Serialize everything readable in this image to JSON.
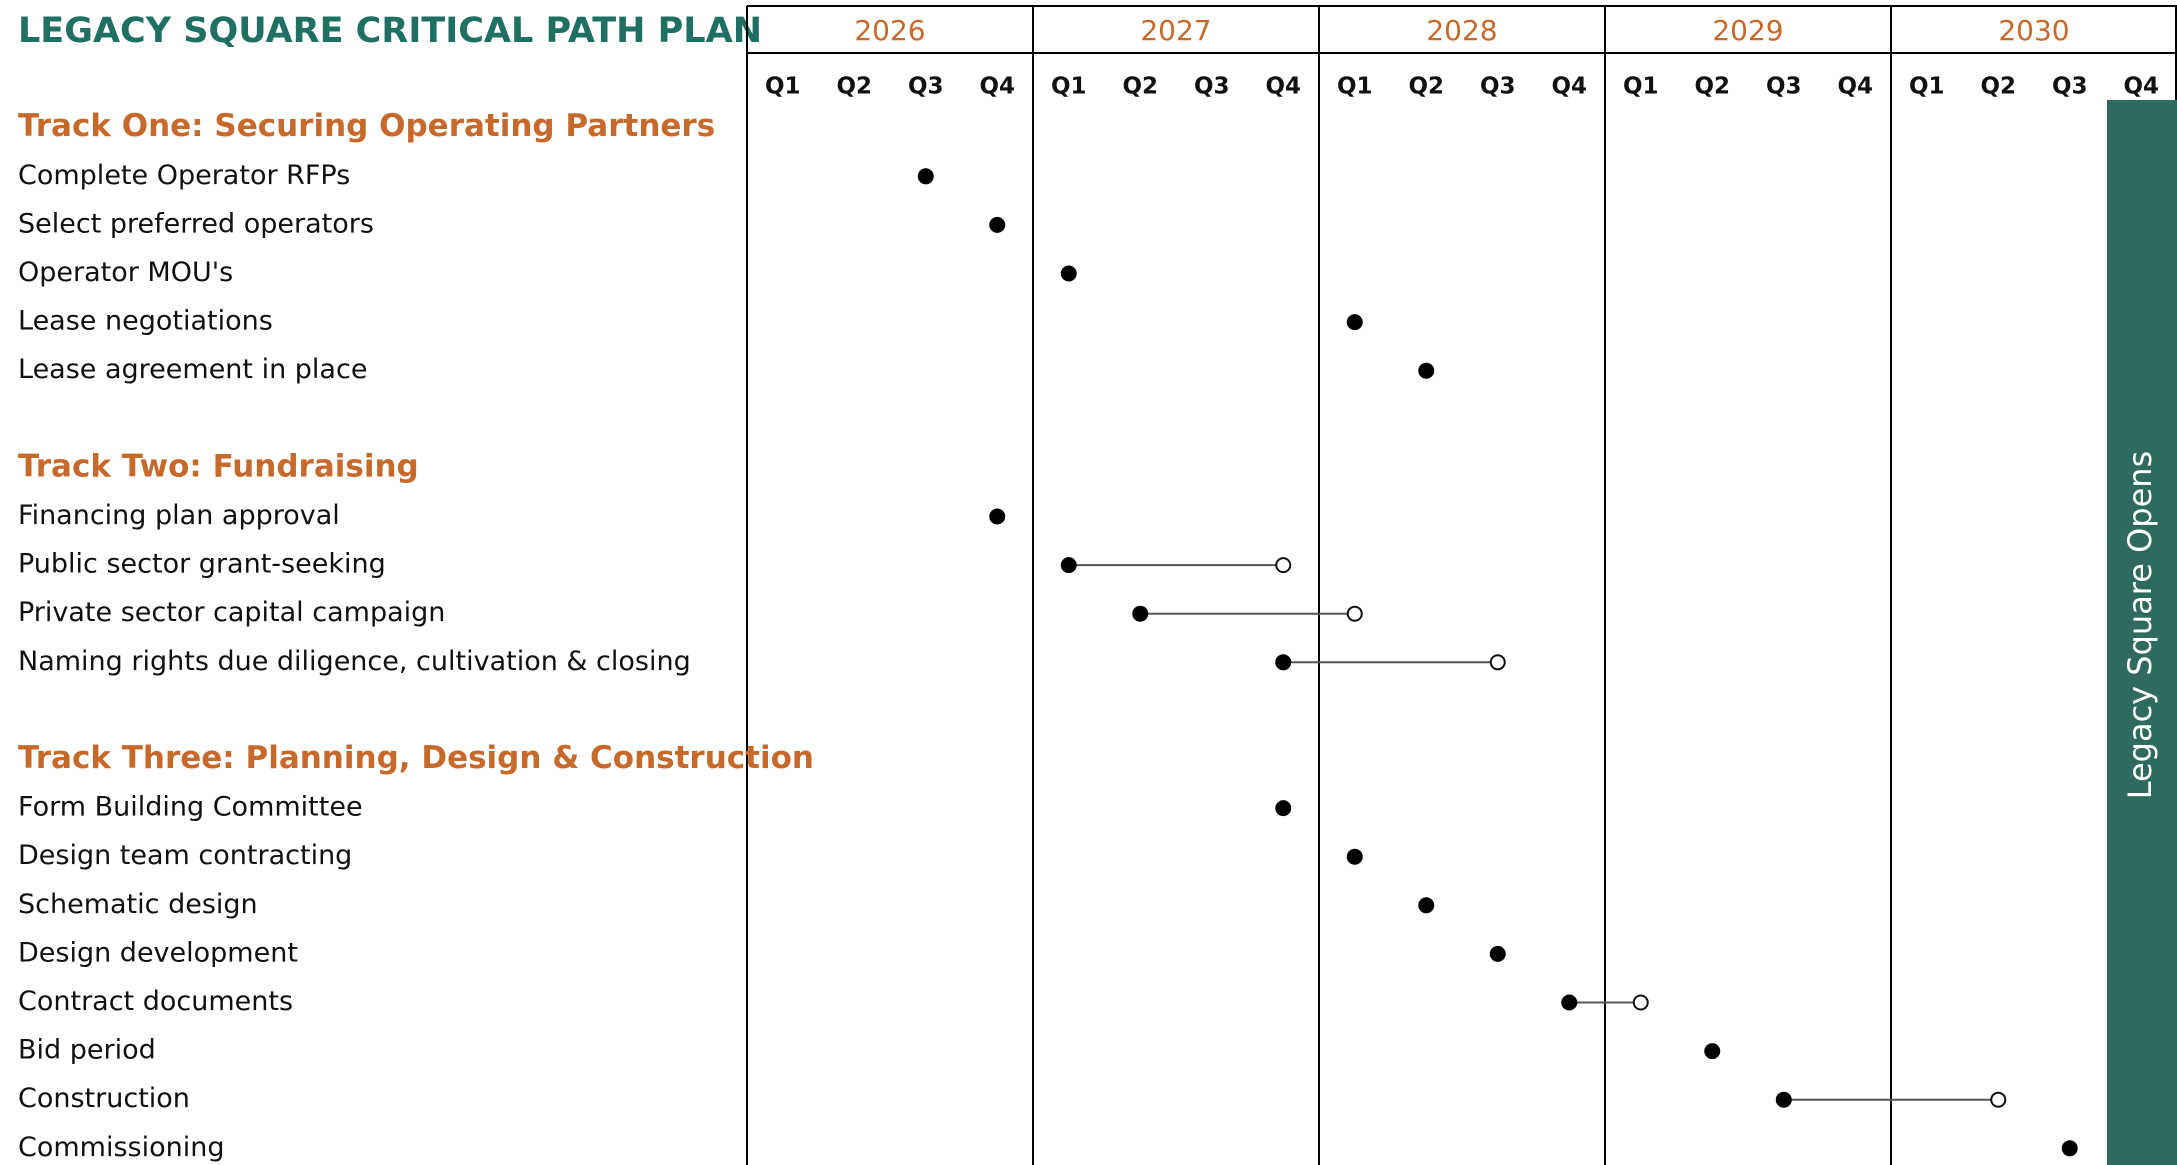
{
  "title": "LEGACY SQUARE CRITICAL PATH PLAN",
  "years": [
    2026,
    2027,
    2028,
    2029,
    2030
  ],
  "quarters": [
    "Q1",
    "Q2",
    "Q3",
    "Q4"
  ],
  "banner": "Legacy Square Opens",
  "tracks": [
    {
      "title": "Track One: Securing Operating Partners",
      "tasks": [
        {
          "label": "Complete Operator RFPs",
          "start": 2026.5
        },
        {
          "label": "Select preferred operators",
          "start": 2026.75
        },
        {
          "label": "Operator MOU's",
          "start": 2027.0
        },
        {
          "label": "Lease negotiations",
          "start": 2028.0
        },
        {
          "label": "Lease agreement in place",
          "start": 2028.25
        }
      ]
    },
    {
      "title": "Track Two: Fundraising",
      "tasks": [
        {
          "label": "Financing plan approval",
          "start": 2026.75
        },
        {
          "label": "Public sector grant-seeking",
          "start": 2027.0,
          "end": 2027.75
        },
        {
          "label": "Private sector capital campaign",
          "start": 2027.25,
          "end": 2028.0
        },
        {
          "label": "Naming rights due diligence, cultivation & closing",
          "start": 2027.75,
          "end": 2028.5
        }
      ]
    },
    {
      "title": "Track Three: Planning, Design & Construction",
      "tasks": [
        {
          "label": "Form Building Committee",
          "start": 2027.75
        },
        {
          "label": "Design team contracting",
          "start": 2028.0
        },
        {
          "label": "Schematic design",
          "start": 2028.25
        },
        {
          "label": "Design development",
          "start": 2028.5
        },
        {
          "label": "Contract documents",
          "start": 2028.75,
          "end": 2029.0
        },
        {
          "label": "Bid period",
          "start": 2029.25
        },
        {
          "label": "Construction",
          "start": 2029.5,
          "end": 2030.25
        },
        {
          "label": "Commissioning",
          "start": 2030.5
        }
      ]
    }
  ]
}
